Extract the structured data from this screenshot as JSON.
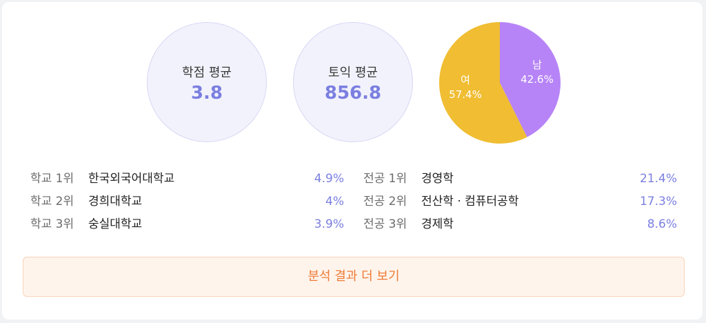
{
  "stats": {
    "gpa": {
      "label": "학점 평균",
      "value": "3.8"
    },
    "toeic": {
      "label": "토익 평균",
      "value": "856.8"
    }
  },
  "gender": {
    "male": {
      "label": "남",
      "percent": "42.6%",
      "value": 42.6,
      "color": "#b784f7"
    },
    "female": {
      "label": "여",
      "percent": "57.4%",
      "value": 57.4,
      "color": "#f0bd33"
    }
  },
  "schools": [
    {
      "rank": "학교 1위",
      "name": "한국외국어대학교",
      "percent": "4.9%"
    },
    {
      "rank": "학교 2위",
      "name": "경희대학교",
      "percent": "4%"
    },
    {
      "rank": "학교 3위",
      "name": "숭실대학교",
      "percent": "3.9%"
    }
  ],
  "majors": [
    {
      "rank": "전공 1위",
      "name": "경영학",
      "percent": "21.4%"
    },
    {
      "rank": "전공 2위",
      "name": "전산학 · 컴퓨터공학",
      "percent": "17.3%"
    },
    {
      "rank": "전공 3위",
      "name": "경제학",
      "percent": "8.6%"
    }
  ],
  "more_button": {
    "label": "분석 결과 더 보기"
  },
  "colors": {
    "accent": "#7b7fe0",
    "button_text": "#ee7a34",
    "button_bg": "#fff4ec"
  }
}
